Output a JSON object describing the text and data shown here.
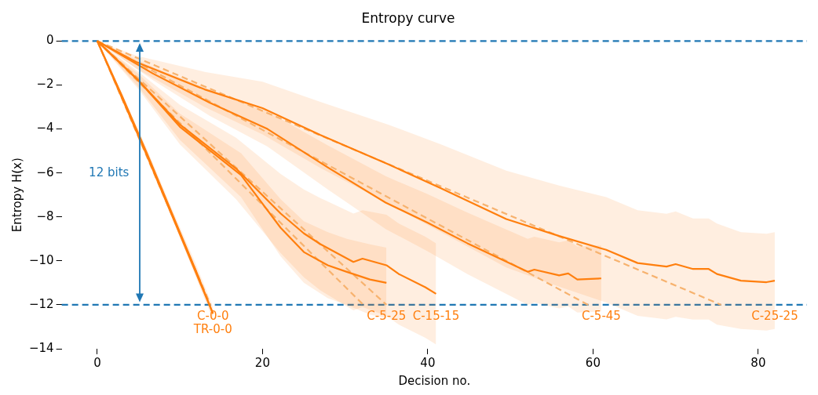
{
  "chart_data": {
    "type": "line",
    "title": "Entropy curve",
    "xlabel": "Decision no.",
    "ylabel": "Entropy H(x)",
    "xlim": [
      -4.3,
      85.9
    ],
    "ylim": [
      -14,
      0
    ],
    "xticks": [
      0,
      20,
      40,
      60,
      80
    ],
    "yticks": [
      {
        "value": -14,
        "label": "−14"
      },
      {
        "value": -12,
        "label": "−12"
      },
      {
        "value": -10,
        "label": "−10"
      },
      {
        "value": -8,
        "label": "−8"
      },
      {
        "value": -6,
        "label": "−6"
      },
      {
        "value": -4,
        "label": "−4"
      },
      {
        "value": -2,
        "label": "−2"
      },
      0
    ],
    "grid": false,
    "legend": false,
    "marker": "none",
    "series": [
      {
        "name": "C-25-25",
        "color": "#ff7f0e",
        "line_style": "solid",
        "x": [
          0,
          4.8,
          13,
          20,
          27,
          35.2,
          41.6,
          49.5,
          55.9,
          61.6,
          65.4,
          68.9,
          70,
          72.1,
          74,
          75,
          77.9,
          81,
          82
        ],
        "values": [
          0,
          -0.97,
          -2.2,
          -3.05,
          -4.27,
          -5.6,
          -6.7,
          -8.1,
          -8.87,
          -9.5,
          -10.1,
          -10.26,
          -10.15,
          -10.37,
          -10.37,
          -10.6,
          -10.9,
          -10.97,
          -10.9
        ],
        "lower": [
          0,
          -1.27,
          -3.0,
          -4.25,
          -5.77,
          -7.4,
          -8.7,
          -10.3,
          -11.17,
          -11.9,
          -12.5,
          -12.66,
          -12.55,
          -12.67,
          -12.67,
          -12.9,
          -13.1,
          -13.17,
          -13.1
        ],
        "upper": [
          0,
          -0.67,
          -1.4,
          -1.85,
          -2.77,
          -3.8,
          -4.7,
          -5.9,
          -6.57,
          -7.1,
          -7.7,
          -7.86,
          -7.75,
          -8.07,
          -8.07,
          -8.3,
          -8.7,
          -8.77,
          -8.7
        ]
      },
      {
        "name": "C-5-45",
        "color": "#ff7f0e",
        "line_style": "solid",
        "x": [
          0,
          6.7,
          13.6,
          20.6,
          27.9,
          34.9,
          40,
          44.8,
          52.1,
          52.9,
          55.9,
          57,
          58.1,
          61
        ],
        "values": [
          0,
          -1.47,
          -2.8,
          -4.0,
          -5.75,
          -7.35,
          -8.27,
          -9.2,
          -10.5,
          -10.4,
          -10.66,
          -10.57,
          -10.85,
          -10.8
        ],
        "lower": [
          0,
          -1.77,
          -3.4,
          -4.8,
          -6.75,
          -8.55,
          -9.57,
          -10.6,
          -12.0,
          -11.9,
          -12.16,
          -12.07,
          -12.35,
          -12.3
        ],
        "upper": [
          0,
          -1.17,
          -2.2,
          -3.2,
          -4.75,
          -6.15,
          -6.97,
          -7.8,
          -9.0,
          -8.9,
          -9.16,
          -9.07,
          -9.35,
          -9.3
        ]
      },
      {
        "name": "C-5-25",
        "color": "#ff7f0e",
        "line_style": "solid",
        "x": [
          0,
          5,
          10,
          17.4,
          22.2,
          25,
          27.9,
          30.2,
          33,
          35
        ],
        "values": [
          0,
          -1.8,
          -3.9,
          -6.1,
          -8.5,
          -9.6,
          -10.2,
          -10.5,
          -10.85,
          -11.0
        ],
        "lower": [
          0,
          -2.1,
          -4.5,
          -7.1,
          -9.8,
          -11.0,
          -11.7,
          -12.0,
          -12.45,
          -12.6
        ],
        "upper": [
          0,
          -1.5,
          -3.3,
          -5.1,
          -7.2,
          -8.2,
          -8.7,
          -9.0,
          -9.25,
          -9.4
        ]
      },
      {
        "name": "C-15-15",
        "color": "#ff7f0e",
        "line_style": "solid",
        "x": [
          0,
          5,
          10,
          16.8,
          22.2,
          25,
          27,
          31,
          32.1,
          35,
          36.5,
          39.7,
          41
        ],
        "values": [
          0,
          -1.8,
          -3.8,
          -5.8,
          -7.85,
          -8.75,
          -9.24,
          -10.05,
          -9.9,
          -10.2,
          -10.6,
          -11.2,
          -11.5
        ],
        "lower": [
          0,
          -2.2,
          -4.7,
          -7.2,
          -9.65,
          -10.75,
          -11.34,
          -12.25,
          -12.1,
          -12.5,
          -12.9,
          -13.5,
          -13.8
        ],
        "upper": [
          0,
          -1.4,
          -2.9,
          -4.4,
          -6.05,
          -6.75,
          -7.14,
          -7.85,
          -7.7,
          -7.9,
          -8.3,
          -8.9,
          -9.2
        ]
      },
      {
        "name": "TR-0-0",
        "color": "#ff7f0e",
        "line_style": "solid",
        "x": [
          0,
          3,
          6,
          9,
          12,
          14
        ],
        "values": [
          0,
          -2.5,
          -5.1,
          -7.8,
          -10.5,
          -12.4
        ],
        "lower": [
          0,
          -2.6,
          -5.3,
          -8.0,
          -10.8,
          -12.7
        ],
        "upper": [
          0,
          -2.4,
          -4.9,
          -7.6,
          -10.2,
          -12.1
        ]
      },
      {
        "name": "C-0-0",
        "color": "#ff7f0e",
        "line_style": "solid",
        "x": [
          0,
          3,
          6,
          9,
          12,
          14
        ],
        "values": [
          0,
          -2.6,
          -5.2,
          -7.9,
          -10.6,
          -12.4
        ]
      },
      {
        "color": "#f7b26e",
        "line_style": "dashed",
        "x": [
          0,
          13.7
        ],
        "values": [
          0,
          -12
        ]
      },
      {
        "color": "#f7b26e",
        "line_style": "dashed",
        "x": [
          0,
          32.2
        ],
        "values": [
          0,
          -12
        ]
      },
      {
        "color": "#f7b26e",
        "line_style": "dashed",
        "x": [
          0,
          35
        ],
        "values": [
          0,
          -12
        ]
      },
      {
        "color": "#f7b26e",
        "line_style": "dashed",
        "x": [
          0,
          59.4
        ],
        "values": [
          0,
          -12
        ]
      },
      {
        "color": "#f7b26e",
        "line_style": "dashed",
        "x": [
          0,
          75.5
        ],
        "values": [
          0,
          -12
        ]
      }
    ],
    "ref_lines": [
      {
        "axis": "y",
        "value": 0,
        "color": "#1f77b4",
        "line_style": "dashed"
      },
      {
        "axis": "y",
        "value": -12,
        "color": "#1f77b4",
        "line_style": "dashed"
      }
    ],
    "annotations": [
      "12 bits"
    ]
  }
}
